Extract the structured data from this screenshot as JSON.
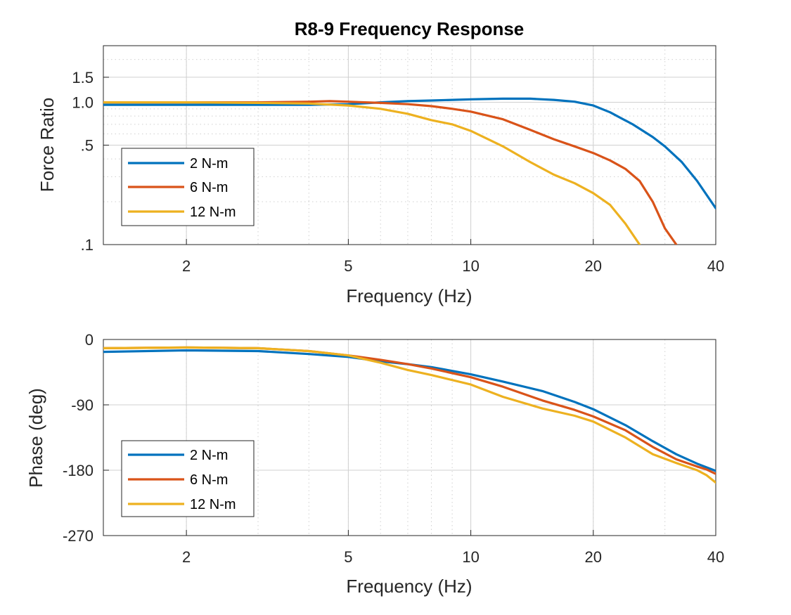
{
  "title": "R8-9 Frequency Response",
  "colors": {
    "blue": "#0072BD",
    "orange": "#D95319",
    "yellow": "#EDB120",
    "grid": "#d0d0d0",
    "axis": "#262626"
  },
  "chart_data": [
    {
      "type": "line",
      "xscale": "log",
      "yscale": "log",
      "xlabel": "Frequency (Hz)",
      "ylabel": "Force Ratio",
      "xlim": [
        1.25,
        40
      ],
      "ylim": [
        0.1,
        2.5
      ],
      "xticks": [
        2,
        5,
        10,
        20,
        40
      ],
      "xtick_labels": [
        "2",
        "5",
        "10",
        "20",
        "40"
      ],
      "yticks": [
        0.1,
        0.5,
        1.0,
        1.5
      ],
      "ytick_labels": [
        ".1",
        ".5",
        "1.0",
        "1.5"
      ],
      "grid": true,
      "legend_position": "bottom-left",
      "series": [
        {
          "name": "2 N-m",
          "color": "#0072BD",
          "x": [
            1.25,
            2,
            3,
            4,
            5,
            6,
            7,
            8,
            10,
            12,
            14,
            16,
            18,
            20,
            22,
            25,
            28,
            30,
            33,
            36,
            40
          ],
          "y": [
            0.96,
            0.96,
            0.96,
            0.96,
            0.97,
            1.0,
            1.02,
            1.03,
            1.05,
            1.06,
            1.06,
            1.04,
            1.01,
            0.95,
            0.85,
            0.7,
            0.57,
            0.49,
            0.38,
            0.28,
            0.18
          ]
        },
        {
          "name": "6 N-m",
          "color": "#D95319",
          "x": [
            1.25,
            2,
            3,
            4,
            4.5,
            5,
            6,
            7,
            8,
            9,
            10,
            12,
            14,
            16,
            18,
            20,
            22,
            24,
            26,
            28,
            30,
            32
          ],
          "y": [
            1.0,
            1.0,
            1.0,
            1.01,
            1.02,
            1.01,
            0.99,
            0.97,
            0.94,
            0.9,
            0.86,
            0.76,
            0.64,
            0.55,
            0.49,
            0.44,
            0.39,
            0.34,
            0.28,
            0.2,
            0.13,
            0.1
          ]
        },
        {
          "name": "12 N-m",
          "color": "#EDB120",
          "x": [
            1.25,
            2,
            3,
            4,
            5,
            6,
            7,
            8,
            9,
            10,
            12,
            14,
            16,
            18,
            20,
            22,
            24,
            26
          ],
          "y": [
            1.0,
            1.0,
            0.99,
            0.98,
            0.95,
            0.9,
            0.83,
            0.75,
            0.7,
            0.63,
            0.49,
            0.38,
            0.31,
            0.27,
            0.23,
            0.19,
            0.14,
            0.1
          ]
        }
      ]
    },
    {
      "type": "line",
      "xscale": "log",
      "xlabel": "Frequency (Hz)",
      "ylabel": "Phase (deg)",
      "xlim": [
        1.25,
        40
      ],
      "ylim": [
        -270,
        0
      ],
      "xticks": [
        2,
        5,
        10,
        20,
        40
      ],
      "xtick_labels": [
        "2",
        "5",
        "10",
        "20",
        "40"
      ],
      "yticks": [
        -270,
        -180,
        -90,
        0
      ],
      "ytick_labels": [
        "-270",
        "-180",
        "-90",
        "0"
      ],
      "grid": true,
      "legend_position": "bottom-left",
      "series": [
        {
          "name": "2 N-m",
          "color": "#0072BD",
          "x": [
            1.25,
            2,
            3,
            4,
            5,
            6,
            7,
            8,
            10,
            12,
            15,
            18,
            20,
            24,
            28,
            32,
            36,
            40
          ],
          "y": [
            -17,
            -15,
            -16,
            -20,
            -24,
            -30,
            -34,
            -38,
            -48,
            -58,
            -71,
            -86,
            -96,
            -118,
            -140,
            -158,
            -171,
            -181
          ]
        },
        {
          "name": "6 N-m",
          "color": "#D95319",
          "x": [
            1.25,
            2,
            3,
            4,
            5,
            6,
            7,
            8,
            10,
            12,
            15,
            18,
            20,
            24,
            28,
            32,
            36,
            38,
            40
          ],
          "y": [
            -12,
            -11,
            -12,
            -16,
            -22,
            -28,
            -34,
            -40,
            -52,
            -65,
            -84,
            -97,
            -106,
            -125,
            -148,
            -165,
            -175,
            -179,
            -185
          ]
        },
        {
          "name": "12 N-m",
          "color": "#EDB120",
          "x": [
            1.25,
            2,
            3,
            4,
            5,
            6,
            7,
            8,
            10,
            12,
            15,
            18,
            20,
            24,
            28,
            32,
            36,
            38,
            40
          ],
          "y": [
            -12,
            -11,
            -12,
            -16,
            -22,
            -32,
            -42,
            -49,
            -62,
            -79,
            -95,
            -105,
            -113,
            -135,
            -158,
            -170,
            -180,
            -187,
            -197
          ]
        }
      ]
    }
  ]
}
